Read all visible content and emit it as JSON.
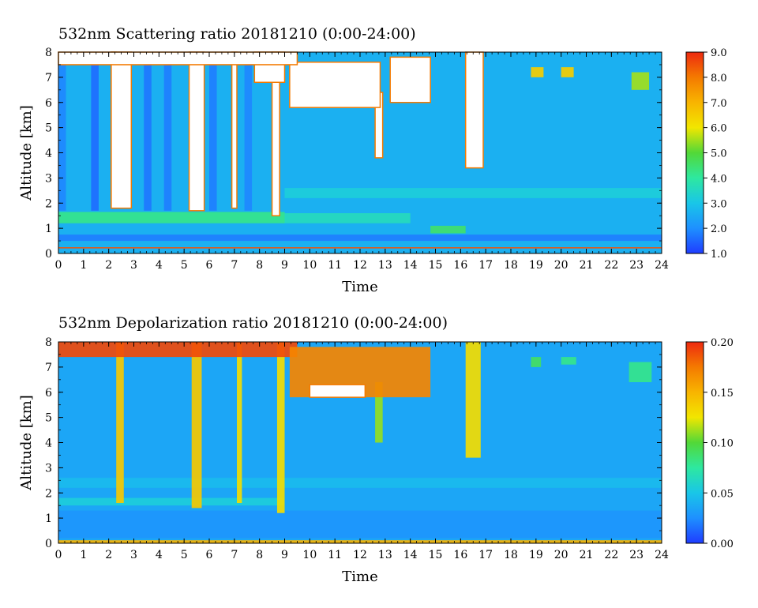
{
  "chart_data": [
    {
      "type": "heatmap",
      "title": "532nm Scattering ratio  20181210 (0:00-24:00)",
      "xlabel": "Time",
      "ylabel": "Altitude [km]",
      "xlim": [
        0,
        24
      ],
      "ylim": [
        0,
        8
      ],
      "x_ticks": [
        "0",
        "1",
        "2",
        "3",
        "4",
        "5",
        "6",
        "7",
        "8",
        "9",
        "10",
        "11",
        "12",
        "13",
        "14",
        "15",
        "16",
        "17",
        "18",
        "19",
        "20",
        "21",
        "22",
        "23",
        "24"
      ],
      "y_ticks": [
        "0",
        "1",
        "2",
        "3",
        "4",
        "5",
        "6",
        "7",
        "8"
      ],
      "colorbar": {
        "range": [
          1.0,
          9.0
        ],
        "ticks": [
          "1.0",
          "2.0",
          "3.0",
          "4.0",
          "5.0",
          "6.0",
          "7.0",
          "8.0",
          "9.0"
        ]
      },
      "background_value": 2.6,
      "features": [
        {
          "kind": "low-layer",
          "x": [
            0,
            24
          ],
          "y": [
            0.5,
            0.75
          ],
          "value": 1.8
        },
        {
          "kind": "surface-line",
          "x": [
            0,
            24
          ],
          "y": [
            0.2,
            0.25
          ],
          "value": 8.5
        },
        {
          "kind": "aerosol-layer",
          "x": [
            0,
            9
          ],
          "y": [
            1.2,
            1.65
          ],
          "value": 4.2
        },
        {
          "kind": "aerosol-layer",
          "x": [
            9,
            14
          ],
          "y": [
            1.2,
            1.6
          ],
          "value": 3.6
        },
        {
          "kind": "aerosol-layer",
          "x": [
            14.8,
            16.2
          ],
          "y": [
            0.8,
            1.1
          ],
          "value": 4.5
        },
        {
          "kind": "aerosol-band",
          "x": [
            9,
            24
          ],
          "y": [
            2.2,
            2.6
          ],
          "value": 3.2
        },
        {
          "kind": "low-signal-column",
          "x": [
            0,
            0.3
          ],
          "y": [
            1.7,
            7.5
          ],
          "value": 1.9
        },
        {
          "kind": "low-signal-column",
          "x": [
            1.3,
            1.6
          ],
          "y": [
            1.7,
            7.8
          ],
          "value": 1.6
        },
        {
          "kind": "low-signal-column",
          "x": [
            3.4,
            3.7
          ],
          "y": [
            1.7,
            7.8
          ],
          "value": 1.7
        },
        {
          "kind": "low-signal-column",
          "x": [
            4.2,
            4.5
          ],
          "y": [
            1.7,
            7.6
          ],
          "value": 1.8
        },
        {
          "kind": "low-signal-column",
          "x": [
            6.0,
            6.3
          ],
          "y": [
            1.7,
            7.6
          ],
          "value": 1.8
        },
        {
          "kind": "low-signal-column",
          "x": [
            7.4,
            7.7
          ],
          "y": [
            1.7,
            7.5
          ],
          "value": 1.9
        },
        {
          "kind": "saturated-column",
          "x": [
            2.1,
            2.3
          ],
          "y": [
            1.8,
            8.0
          ],
          "value": 10
        },
        {
          "kind": "saturated-column",
          "x": [
            2.1,
            2.9
          ],
          "y": [
            1.8,
            8.0
          ],
          "value": 10
        },
        {
          "kind": "saturated-column",
          "x": [
            5.2,
            5.8
          ],
          "y": [
            1.7,
            8.0
          ],
          "value": 10
        },
        {
          "kind": "saturated-column",
          "x": [
            6.9,
            7.1
          ],
          "y": [
            1.8,
            8.0
          ],
          "value": 10
        },
        {
          "kind": "saturated-column",
          "x": [
            8.5,
            8.8
          ],
          "y": [
            1.5,
            8.0
          ],
          "value": 10
        },
        {
          "kind": "saturated-column",
          "x": [
            12.6,
            12.9
          ],
          "y": [
            3.8,
            6.4
          ],
          "value": 10
        },
        {
          "kind": "saturated-column",
          "x": [
            16.2,
            16.9
          ],
          "y": [
            3.4,
            8.0
          ],
          "value": 10
        },
        {
          "kind": "cloud",
          "x": [
            9.2,
            12.8
          ],
          "y": [
            5.8,
            7.6
          ],
          "value": 10
        },
        {
          "kind": "cloud",
          "x": [
            13.2,
            14.8
          ],
          "y": [
            6.0,
            7.8
          ],
          "value": 10
        },
        {
          "kind": "cloud",
          "x": [
            7.8,
            9.0
          ],
          "y": [
            6.8,
            8.0
          ],
          "value": 10
        },
        {
          "kind": "cloud-top",
          "x": [
            0,
            9.5
          ],
          "y": [
            7.5,
            8.0
          ],
          "value": 10
        },
        {
          "kind": "small-cloud",
          "x": [
            18.8,
            19.3
          ],
          "y": [
            7.0,
            7.4
          ],
          "value": 6.5
        },
        {
          "kind": "small-cloud",
          "x": [
            20.0,
            20.5
          ],
          "y": [
            7.0,
            7.4
          ],
          "value": 6.5
        },
        {
          "kind": "small-cloud",
          "x": [
            22.8,
            23.5
          ],
          "y": [
            6.5,
            7.2
          ],
          "value": 5.5
        }
      ]
    },
    {
      "type": "heatmap",
      "title": "532nm Depolarization ratio  20181210 (0:00-24:00)",
      "xlabel": "Time",
      "ylabel": "Altitude [km]",
      "xlim": [
        0,
        24
      ],
      "ylim": [
        0,
        8
      ],
      "x_ticks": [
        "0",
        "1",
        "2",
        "3",
        "4",
        "5",
        "6",
        "7",
        "8",
        "9",
        "10",
        "11",
        "12",
        "13",
        "14",
        "15",
        "16",
        "17",
        "18",
        "19",
        "20",
        "21",
        "22",
        "23",
        "24"
      ],
      "y_ticks": [
        "0",
        "1",
        "2",
        "3",
        "4",
        "5",
        "6",
        "7",
        "8"
      ],
      "colorbar": {
        "range": [
          0.0,
          0.2
        ],
        "ticks": [
          "0.00",
          "0.05",
          "0.10",
          "0.15",
          "0.20"
        ]
      },
      "background_value": 0.035,
      "features": [
        {
          "kind": "boundary-layer",
          "x": [
            0,
            24
          ],
          "y": [
            0.2,
            1.3
          ],
          "value": 0.028
        },
        {
          "kind": "surface-line",
          "x": [
            0,
            24
          ],
          "y": [
            0.0,
            0.12
          ],
          "value": 0.15
        },
        {
          "kind": "aerosol-band",
          "x": [
            0,
            24
          ],
          "y": [
            2.2,
            2.6
          ],
          "value": 0.045
        },
        {
          "kind": "aerosol-layer",
          "x": [
            0,
            9
          ],
          "y": [
            1.5,
            1.8
          ],
          "value": 0.055
        },
        {
          "kind": "precip-column",
          "x": [
            2.3,
            2.6
          ],
          "y": [
            1.6,
            8.0
          ],
          "value": 0.14
        },
        {
          "kind": "precip-column",
          "x": [
            5.3,
            5.7
          ],
          "y": [
            1.4,
            8.0
          ],
          "value": 0.14
        },
        {
          "kind": "precip-column",
          "x": [
            7.1,
            7.3
          ],
          "y": [
            1.6,
            8.0
          ],
          "value": 0.13
        },
        {
          "kind": "precip-column",
          "x": [
            8.7,
            9.0
          ],
          "y": [
            1.2,
            8.0
          ],
          "value": 0.13
        },
        {
          "kind": "precip-column",
          "x": [
            12.6,
            12.9
          ],
          "y": [
            4.0,
            6.4
          ],
          "value": 0.11
        },
        {
          "kind": "precip-column",
          "x": [
            16.2,
            16.8
          ],
          "y": [
            3.4,
            8.0
          ],
          "value": 0.13
        },
        {
          "kind": "cloud-top",
          "x": [
            0,
            9.5
          ],
          "y": [
            7.4,
            8.0
          ],
          "value": 0.19
        },
        {
          "kind": "cloud",
          "x": [
            9.2,
            14.8
          ],
          "y": [
            5.8,
            7.8
          ],
          "value": 0.17
        },
        {
          "kind": "saturated-patch",
          "x": [
            10.0,
            12.2
          ],
          "y": [
            5.8,
            6.3
          ],
          "value": 0.25
        },
        {
          "kind": "small-cloud",
          "x": [
            18.8,
            19.2
          ],
          "y": [
            7.0,
            7.4
          ],
          "value": 0.09
        },
        {
          "kind": "small-cloud",
          "x": [
            20.0,
            20.6
          ],
          "y": [
            7.1,
            7.4
          ],
          "value": 0.08
        },
        {
          "kind": "small-cloud",
          "x": [
            22.7,
            23.6
          ],
          "y": [
            6.4,
            7.2
          ],
          "value": 0.08
        }
      ]
    }
  ]
}
